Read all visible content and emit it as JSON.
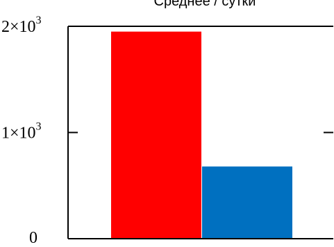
{
  "chart_data": {
    "type": "bar",
    "title": "Среднее / сутки",
    "xlabel": "",
    "ylabel": "",
    "ylim": [
      0,
      2000
    ],
    "grid": false,
    "categories": [
      "",
      ""
    ],
    "values": [
      1950,
      680
    ],
    "colors": [
      "#ff0000",
      "#0070c0"
    ],
    "y_ticks": [
      {
        "value": 0,
        "base": "0",
        "exp": ""
      },
      {
        "value": 1000,
        "base": "1×10",
        "exp": "3"
      },
      {
        "value": 2000,
        "base": "2×10",
        "exp": "3"
      }
    ]
  }
}
